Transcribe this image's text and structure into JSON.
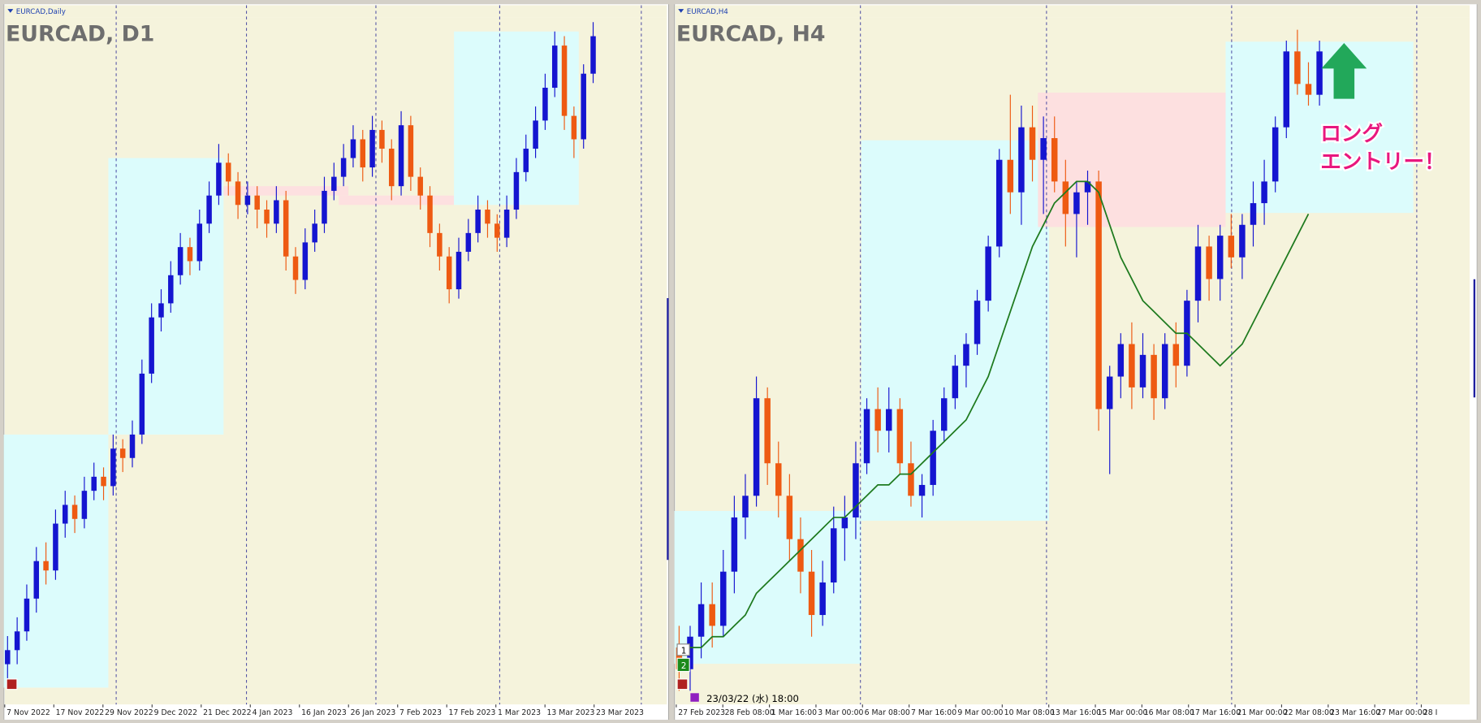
{
  "chart_data": [
    {
      "type": "candlestick",
      "header": "EURCAD,Daily",
      "title": "EURCAD, D1",
      "up_color": "#1515d0",
      "down_color": "#ee5a12",
      "background": "#f5f3dc",
      "ylim": [
        1.35,
        1.498
      ],
      "xtick_labels": [
        "7 Nov 2022",
        "17 Nov 2022",
        "29 Nov 2022",
        "9 Dec 2022",
        "21 Dec 2022",
        "4 Jan 2023",
        "16 Jan 2023",
        "26 Jan 2023",
        "7 Feb 2023",
        "17 Feb 2023",
        "1 Mar 2023",
        "13 Mar 2023",
        "23 Mar 2023"
      ],
      "zones": [
        {
          "x": [
            0,
            10
          ],
          "y": [
            1.353,
            1.407
          ],
          "color": "#dcfcfc"
        },
        {
          "x": [
            11,
            22
          ],
          "y": [
            1.407,
            1.466
          ],
          "color": "#dcfcfc"
        },
        {
          "x": [
            23,
            35
          ],
          "y": [
            1.458,
            1.46
          ],
          "color": "#fde0e0"
        },
        {
          "x": [
            35,
            46
          ],
          "y": [
            1.456,
            1.458
          ],
          "color": "#fde0e0"
        },
        {
          "x": [
            47,
            59
          ],
          "y": [
            1.456,
            1.493
          ],
          "color": "#dcfcfc"
        }
      ],
      "candles": [
        [
          1.358,
          1.364,
          1.355,
          1.361
        ],
        [
          1.361,
          1.368,
          1.358,
          1.365
        ],
        [
          1.365,
          1.375,
          1.363,
          1.372
        ],
        [
          1.372,
          1.383,
          1.369,
          1.38
        ],
        [
          1.38,
          1.384,
          1.375,
          1.378
        ],
        [
          1.378,
          1.391,
          1.376,
          1.388
        ],
        [
          1.388,
          1.395,
          1.385,
          1.392
        ],
        [
          1.392,
          1.394,
          1.386,
          1.389
        ],
        [
          1.389,
          1.398,
          1.387,
          1.395
        ],
        [
          1.395,
          1.401,
          1.393,
          1.398
        ],
        [
          1.398,
          1.4,
          1.393,
          1.396
        ],
        [
          1.396,
          1.407,
          1.394,
          1.404
        ],
        [
          1.404,
          1.406,
          1.399,
          1.402
        ],
        [
          1.402,
          1.41,
          1.4,
          1.407
        ],
        [
          1.407,
          1.423,
          1.405,
          1.42
        ],
        [
          1.42,
          1.435,
          1.418,
          1.432
        ],
        [
          1.432,
          1.438,
          1.429,
          1.435
        ],
        [
          1.435,
          1.444,
          1.433,
          1.441
        ],
        [
          1.441,
          1.45,
          1.439,
          1.447
        ],
        [
          1.447,
          1.449,
          1.441,
          1.444
        ],
        [
          1.444,
          1.455,
          1.442,
          1.452
        ],
        [
          1.452,
          1.461,
          1.45,
          1.458
        ],
        [
          1.458,
          1.469,
          1.456,
          1.465
        ],
        [
          1.465,
          1.467,
          1.458,
          1.461
        ],
        [
          1.461,
          1.463,
          1.453,
          1.456
        ],
        [
          1.456,
          1.461,
          1.454,
          1.458
        ],
        [
          1.458,
          1.46,
          1.451,
          1.455
        ],
        [
          1.455,
          1.457,
          1.449,
          1.452
        ],
        [
          1.452,
          1.46,
          1.45,
          1.457
        ],
        [
          1.457,
          1.459,
          1.442,
          1.445
        ],
        [
          1.445,
          1.447,
          1.437,
          1.44
        ],
        [
          1.44,
          1.451,
          1.438,
          1.448
        ],
        [
          1.448,
          1.455,
          1.446,
          1.452
        ],
        [
          1.452,
          1.462,
          1.45,
          1.459
        ],
        [
          1.459,
          1.465,
          1.457,
          1.462
        ],
        [
          1.462,
          1.469,
          1.46,
          1.466
        ],
        [
          1.466,
          1.473,
          1.464,
          1.47
        ],
        [
          1.47,
          1.472,
          1.461,
          1.464
        ],
        [
          1.464,
          1.475,
          1.462,
          1.472
        ],
        [
          1.472,
          1.474,
          1.465,
          1.468
        ],
        [
          1.468,
          1.47,
          1.457,
          1.46
        ],
        [
          1.46,
          1.476,
          1.458,
          1.473
        ],
        [
          1.473,
          1.475,
          1.459,
          1.462
        ],
        [
          1.462,
          1.464,
          1.455,
          1.458
        ],
        [
          1.458,
          1.46,
          1.447,
          1.45
        ],
        [
          1.45,
          1.452,
          1.442,
          1.445
        ],
        [
          1.445,
          1.447,
          1.435,
          1.438
        ],
        [
          1.438,
          1.449,
          1.436,
          1.446
        ],
        [
          1.446,
          1.453,
          1.444,
          1.45
        ],
        [
          1.45,
          1.458,
          1.448,
          1.455
        ],
        [
          1.455,
          1.457,
          1.449,
          1.452
        ],
        [
          1.452,
          1.454,
          1.446,
          1.449
        ],
        [
          1.449,
          1.458,
          1.447,
          1.455
        ],
        [
          1.455,
          1.466,
          1.453,
          1.463
        ],
        [
          1.463,
          1.471,
          1.461,
          1.468
        ],
        [
          1.468,
          1.477,
          1.466,
          1.474
        ],
        [
          1.474,
          1.484,
          1.472,
          1.481
        ],
        [
          1.481,
          1.493,
          1.479,
          1.49
        ],
        [
          1.49,
          1.492,
          1.472,
          1.475
        ],
        [
          1.475,
          1.477,
          1.466,
          1.47
        ],
        [
          1.47,
          1.486,
          1.468,
          1.484
        ],
        [
          1.484,
          1.495,
          1.482,
          1.492
        ]
      ]
    },
    {
      "type": "candlestick",
      "header": "EURCAD,H4",
      "title": "EURCAD, H4",
      "up_color": "#1515d0",
      "down_color": "#ee5a12",
      "background": "#f5f3dc",
      "ylim": [
        1.43,
        1.494
      ],
      "xtick_labels": [
        "27 Feb 2023",
        "28 Feb 08:00",
        "1 Mar 16:00",
        "3 Mar 00:00",
        "6 Mar 08:00",
        "7 Mar 16:00",
        "9 Mar 00:00",
        "10 Mar 08:00",
        "13 Mar 16:00",
        "15 Mar 00:00",
        "16 Mar 08:00",
        "17 Mar 16:00",
        "21 Mar 00:00",
        "22 Mar 08:00",
        "23 Mar 16:00",
        "27 Mar 00:00",
        "28 I"
      ],
      "zones": [
        {
          "x": [
            0,
            16
          ],
          "y": [
            1.4335,
            1.4476
          ],
          "color": "#dcfcfc"
        },
        {
          "x": [
            17,
            33
          ],
          "y": [
            1.4467,
            1.4818
          ],
          "color": "#dcfcfc"
        },
        {
          "x": [
            33,
            49
          ],
          "y": [
            1.4738,
            1.4862
          ],
          "color": "#fde0e0"
        },
        {
          "x": [
            50,
            66
          ],
          "y": [
            1.4751,
            1.4909
          ],
          "color": "#dcfcfc"
        }
      ],
      "candles": [
        [
          1.435,
          1.437,
          1.431,
          1.433
        ],
        [
          1.433,
          1.437,
          1.431,
          1.436
        ],
        [
          1.436,
          1.441,
          1.434,
          1.439
        ],
        [
          1.439,
          1.441,
          1.435,
          1.437
        ],
        [
          1.437,
          1.444,
          1.436,
          1.442
        ],
        [
          1.442,
          1.449,
          1.44,
          1.447
        ],
        [
          1.447,
          1.451,
          1.445,
          1.449
        ],
        [
          1.449,
          1.46,
          1.448,
          1.458
        ],
        [
          1.458,
          1.459,
          1.45,
          1.452
        ],
        [
          1.452,
          1.454,
          1.447,
          1.449
        ],
        [
          1.449,
          1.451,
          1.443,
          1.445
        ],
        [
          1.445,
          1.447,
          1.44,
          1.442
        ],
        [
          1.442,
          1.444,
          1.436,
          1.438
        ],
        [
          1.438,
          1.443,
          1.437,
          1.441
        ],
        [
          1.441,
          1.448,
          1.44,
          1.446
        ],
        [
          1.446,
          1.449,
          1.443,
          1.447
        ],
        [
          1.447,
          1.454,
          1.445,
          1.452
        ],
        [
          1.452,
          1.458,
          1.451,
          1.457
        ],
        [
          1.457,
          1.459,
          1.453,
          1.455
        ],
        [
          1.455,
          1.459,
          1.453,
          1.457
        ],
        [
          1.457,
          1.458,
          1.451,
          1.452
        ],
        [
          1.452,
          1.454,
          1.448,
          1.449
        ],
        [
          1.449,
          1.451,
          1.447,
          1.45
        ],
        [
          1.45,
          1.456,
          1.449,
          1.455
        ],
        [
          1.455,
          1.459,
          1.454,
          1.458
        ],
        [
          1.458,
          1.462,
          1.457,
          1.461
        ],
        [
          1.461,
          1.464,
          1.459,
          1.463
        ],
        [
          1.463,
          1.468,
          1.462,
          1.467
        ],
        [
          1.467,
          1.473,
          1.466,
          1.472
        ],
        [
          1.472,
          1.481,
          1.471,
          1.48
        ],
        [
          1.48,
          1.486,
          1.475,
          1.477
        ],
        [
          1.477,
          1.485,
          1.474,
          1.483
        ],
        [
          1.483,
          1.485,
          1.478,
          1.48
        ],
        [
          1.48,
          1.484,
          1.475,
          1.482
        ],
        [
          1.482,
          1.484,
          1.477,
          1.478
        ],
        [
          1.478,
          1.48,
          1.472,
          1.475
        ],
        [
          1.475,
          1.478,
          1.471,
          1.477
        ],
        [
          1.477,
          1.479,
          1.474,
          1.478
        ],
        [
          1.478,
          1.479,
          1.455,
          1.457
        ],
        [
          1.457,
          1.461,
          1.451,
          1.46
        ],
        [
          1.46,
          1.464,
          1.458,
          1.463
        ],
        [
          1.463,
          1.465,
          1.457,
          1.459
        ],
        [
          1.459,
          1.464,
          1.458,
          1.462
        ],
        [
          1.462,
          1.463,
          1.456,
          1.458
        ],
        [
          1.458,
          1.464,
          1.457,
          1.463
        ],
        [
          1.463,
          1.465,
          1.459,
          1.461
        ],
        [
          1.461,
          1.468,
          1.46,
          1.467
        ],
        [
          1.467,
          1.474,
          1.465,
          1.472
        ],
        [
          1.472,
          1.473,
          1.467,
          1.469
        ],
        [
          1.469,
          1.474,
          1.467,
          1.473
        ],
        [
          1.473,
          1.475,
          1.47,
          1.471
        ],
        [
          1.471,
          1.475,
          1.469,
          1.474
        ],
        [
          1.474,
          1.478,
          1.472,
          1.476
        ],
        [
          1.476,
          1.48,
          1.474,
          1.478
        ],
        [
          1.478,
          1.484,
          1.477,
          1.483
        ],
        [
          1.483,
          1.491,
          1.482,
          1.49
        ],
        [
          1.49,
          1.492,
          1.486,
          1.487
        ],
        [
          1.487,
          1.489,
          1.485,
          1.486
        ],
        [
          1.486,
          1.491,
          1.485,
          1.49
        ]
      ],
      "ma": {
        "color": "#1e7a1e",
        "values": [
          1.435,
          1.435,
          1.435,
          1.436,
          1.436,
          1.437,
          1.438,
          1.44,
          1.441,
          1.442,
          1.443,
          1.444,
          1.445,
          1.446,
          1.447,
          1.447,
          1.448,
          1.449,
          1.45,
          1.45,
          1.451,
          1.451,
          1.452,
          1.453,
          1.454,
          1.455,
          1.456,
          1.458,
          1.46,
          1.463,
          1.466,
          1.469,
          1.472,
          1.474,
          1.476,
          1.477,
          1.478,
          1.478,
          1.477,
          1.474,
          1.471,
          1.469,
          1.467,
          1.466,
          1.465,
          1.464,
          1.464,
          1.463,
          1.462,
          1.461,
          1.462,
          1.463,
          1.465,
          1.467,
          1.469,
          1.471,
          1.473,
          1.475,
          null
        ]
      },
      "entry_label": [
        "ロング",
        "エントリー！"
      ],
      "timestamp": "23/03/22 (水) 18:00",
      "buttons": [
        "1",
        "2"
      ]
    }
  ]
}
